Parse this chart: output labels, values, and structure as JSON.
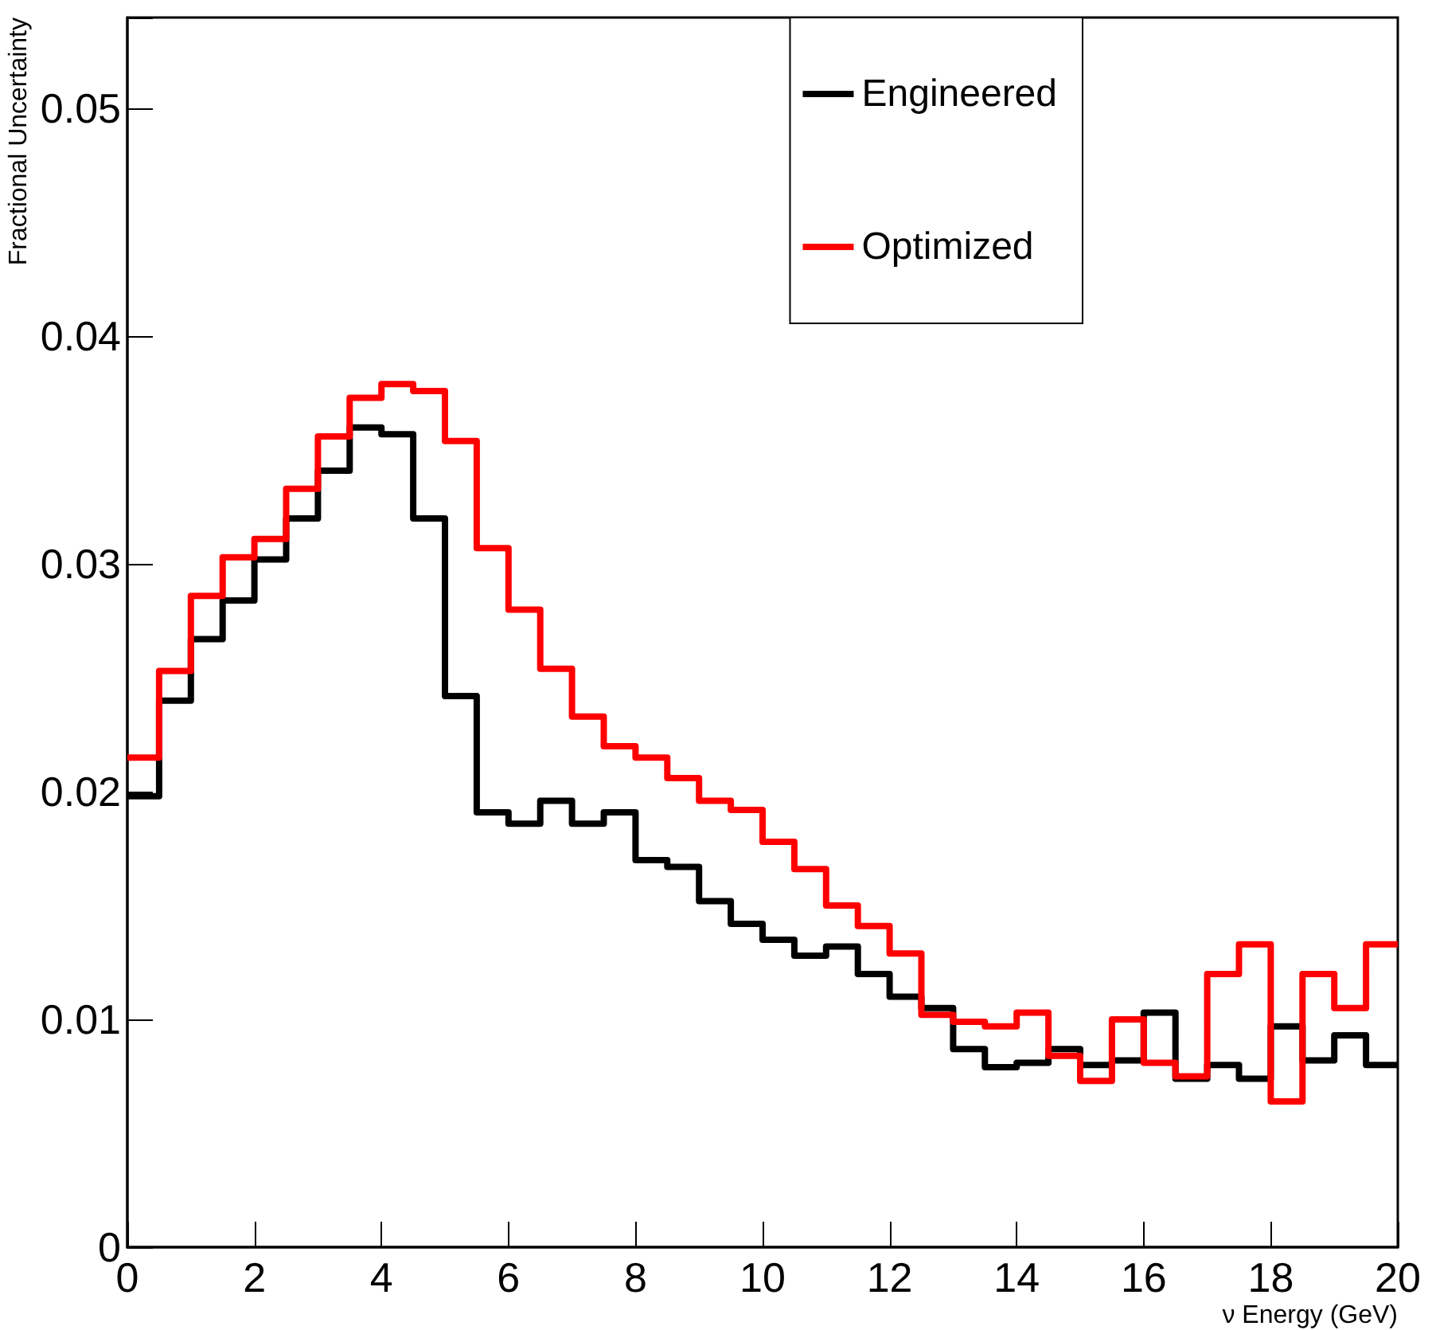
{
  "chart_data": {
    "type": "histogram",
    "xlabel": "ν Energy (GeV)",
    "ylabel": "Fractional Uncertainty",
    "bins": [
      0,
      0.5,
      1,
      1.5,
      2,
      2.5,
      3,
      3.5,
      4,
      4.5,
      5,
      5.5,
      6,
      6.5,
      7,
      7.5,
      8,
      8.5,
      9,
      9.5,
      10,
      10.5,
      11,
      11.5,
      12,
      12.5,
      13,
      13.5,
      14,
      14.5,
      15,
      15.5,
      16,
      16.5,
      17,
      17.5,
      18,
      18.5,
      19,
      19.5,
      20
    ],
    "series": [
      {
        "name": "Engineered",
        "color": "#000000",
        "values": [
          0.0198,
          0.024,
          0.0267,
          0.0284,
          0.0302,
          0.032,
          0.0341,
          0.036,
          0.0357,
          0.032,
          0.0242,
          0.0191,
          0.0186,
          0.0196,
          0.0186,
          0.0191,
          0.017,
          0.0167,
          0.0152,
          0.0142,
          0.0135,
          0.0128,
          0.0132,
          0.012,
          0.011,
          0.0105,
          0.0087,
          0.0079,
          0.0081,
          0.0087,
          0.008,
          0.0082,
          0.0103,
          0.0074,
          0.008,
          0.0074,
          0.0097,
          0.0082,
          0.0093,
          0.008
        ]
      },
      {
        "name": "Optimized",
        "color": "#ff0000",
        "values": [
          0.0215,
          0.0253,
          0.0286,
          0.0303,
          0.0311,
          0.0333,
          0.0356,
          0.0373,
          0.0379,
          0.0376,
          0.0354,
          0.0307,
          0.028,
          0.0254,
          0.0233,
          0.022,
          0.0215,
          0.0206,
          0.0196,
          0.0192,
          0.0178,
          0.0166,
          0.015,
          0.0141,
          0.0129,
          0.0102,
          0.0099,
          0.0097,
          0.0103,
          0.0084,
          0.0073,
          0.01,
          0.0081,
          0.0075,
          0.012,
          0.0133,
          0.0064,
          0.012,
          0.0105,
          0.0133
        ]
      }
    ],
    "xlim": [
      0,
      20
    ],
    "xticks": [
      0,
      2,
      4,
      6,
      8,
      10,
      12,
      14,
      16,
      18,
      20
    ],
    "ylim": [
      0,
      0.054
    ],
    "yticks": [
      0,
      0.01,
      0.02,
      0.03,
      0.04,
      0.05
    ],
    "legend": "top right"
  }
}
